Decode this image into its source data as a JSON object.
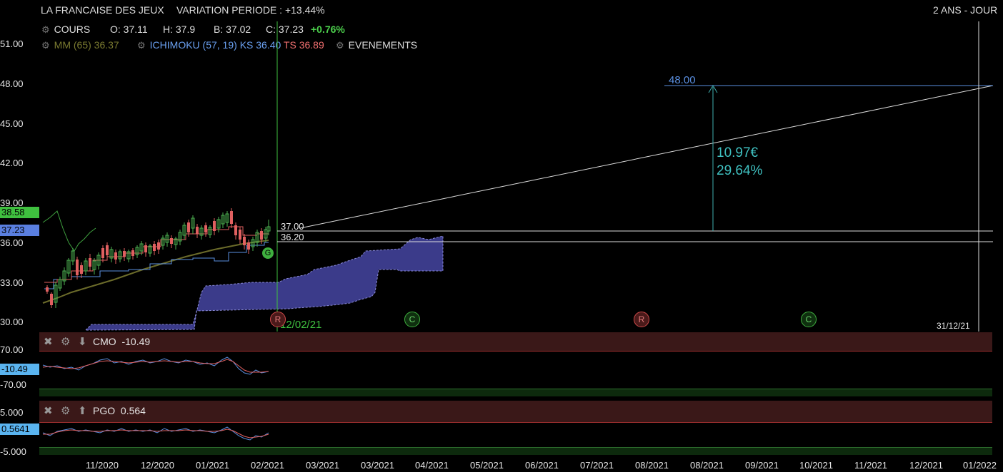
{
  "header": {
    "instrument": "LA FRANCAISE DES JEUX",
    "variation": "VARIATION PERIODE : +13.44%",
    "period": "2 ANS - JOUR"
  },
  "legend": {
    "cours_label": "COURS",
    "open": "O: 37.11",
    "high": "H: 37.9",
    "low": "B: 37.02",
    "close": "C: 37.23",
    "change": "+0.76%",
    "mm": "MM (65) 36.37",
    "ichimoku": "ICHIMOKU (57, 19)",
    "ks": "KS 36.40",
    "ts": "TS 36.89",
    "events": "EVENEMENTS"
  },
  "yaxis": {
    "labels": [
      "51.00",
      "48.00",
      "45.00",
      "42.00",
      "39.00",
      "36.00",
      "33.00",
      "30.00"
    ],
    "badge_high": "38.58",
    "badge_close": "37.23"
  },
  "annotations": {
    "target": "48.00",
    "level1": "37.00",
    "level2": "36.20",
    "delta_value": "10.97€",
    "delta_pct": "29.64%",
    "crosshair_date": "12/02/21",
    "end_date": "31/12/21"
  },
  "events": [
    {
      "type": "R",
      "label": "R"
    },
    {
      "type": "C",
      "label": "C"
    },
    {
      "type": "R",
      "label": "R"
    },
    {
      "type": "C",
      "label": "C"
    },
    {
      "type": "G",
      "label": "G"
    }
  ],
  "cmo": {
    "title": "CMO",
    "value": "-10.49",
    "ymax": "70.00",
    "ymin": "-70.00",
    "badge": "-10.49"
  },
  "pgo": {
    "title": "PGO",
    "value": "0.564",
    "ymax": "5.000",
    "ymin": "-5.000",
    "badge": "0.5641"
  },
  "xaxis": {
    "labels": [
      "11/2020",
      "12/2020",
      "01/2021",
      "02/2021",
      "03/2021",
      "03/2021",
      "04/2021",
      "05/2021",
      "06/2021",
      "07/2021",
      "08/2021",
      "08/2021",
      "09/2021",
      "10/2021",
      "11/2021",
      "12/2021",
      "01/2022"
    ]
  },
  "colors": {
    "up": "#4caf50",
    "down": "#e05a5a",
    "cloud": "#3b3b8a",
    "mm": "#6b6b2a",
    "ks": "#5a8fe0",
    "ts": "#e06060"
  }
}
